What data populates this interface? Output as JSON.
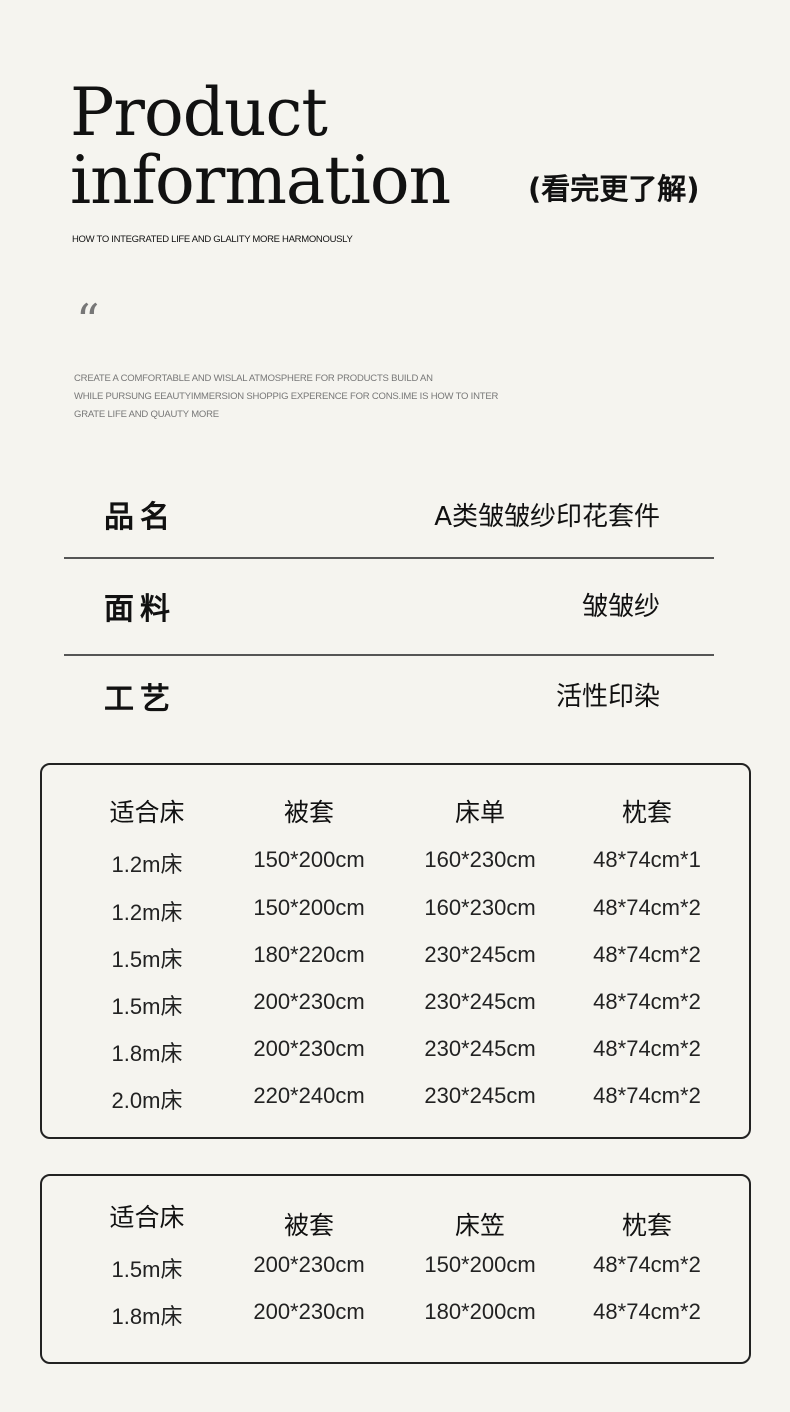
{
  "header": {
    "title_line1": "Product",
    "title_line2": "information",
    "more": "(看完更了解)",
    "subtitle": "HOW TO INTEGRATED LIFE AND GLALITY MORE HARMONOUSLY",
    "quote_mark": "“",
    "description": [
      "CREATE A COMFORTABLE AND WISLAL ATMOSPHERE FOR PRODUCTS BUILD AN",
      "WHILE PURSUNG EEAUTYIMMERSION SHOPPIG EXPERENCE FOR CONS.IME IS HOW TO INTER",
      "GRATE LIFE AND QUAUTY MORE"
    ]
  },
  "specs": [
    {
      "label": "品名",
      "value": "A类皱皱纱印花套件"
    },
    {
      "label": "面料",
      "value": "皱皱纱"
    },
    {
      "label": "工艺",
      "value": "活性印染"
    }
  ],
  "table1": {
    "headers": [
      "适合床",
      "被套",
      "床单",
      "枕套"
    ],
    "rows": [
      [
        "1.2m床",
        "150*200cm",
        "160*230cm",
        "48*74cm*1"
      ],
      [
        "1.2m床",
        "150*200cm",
        "160*230cm",
        "48*74cm*2"
      ],
      [
        "1.5m床",
        "180*220cm",
        "230*245cm",
        "48*74cm*2"
      ],
      [
        "1.5m床",
        "200*230cm",
        "230*245cm",
        "48*74cm*2"
      ],
      [
        "1.8m床",
        "200*230cm",
        "230*245cm",
        "48*74cm*2"
      ],
      [
        "2.0m床",
        "220*240cm",
        "230*245cm",
        "48*74cm*2"
      ]
    ]
  },
  "table2": {
    "headers": [
      "适合床",
      "被套",
      "床笠",
      "枕套"
    ],
    "rows": [
      [
        "1.5m床",
        "200*230cm",
        "150*200cm",
        "48*74cm*2"
      ],
      [
        "1.8m床",
        "200*230cm",
        "180*200cm",
        "48*74cm*2"
      ]
    ]
  }
}
